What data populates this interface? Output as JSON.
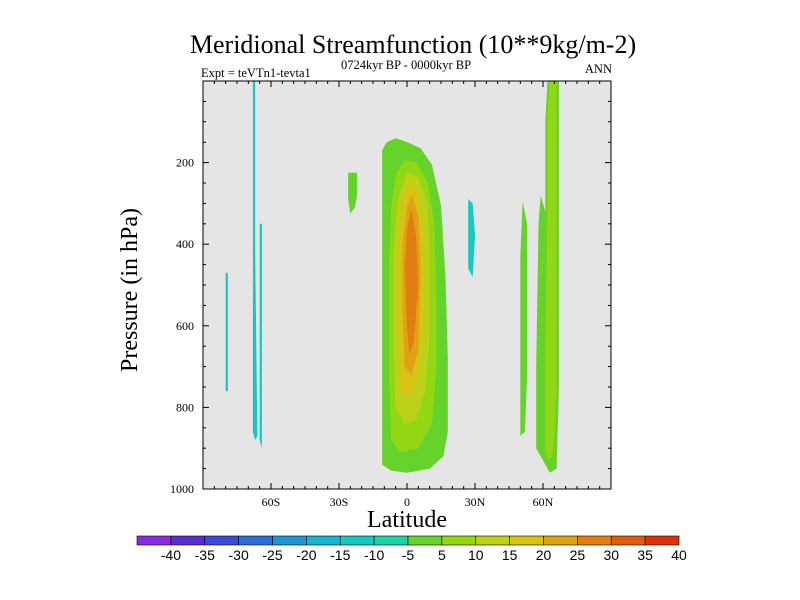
{
  "chart_data": {
    "type": "contour",
    "title": "Meridional Streamfunction (10**9kg/m-2)",
    "left_string": "Expt = teVTn1-tevta1",
    "center_string": "0724kyr BP - 0000kyr BP",
    "right_string": "ANN",
    "xlabel": "Latitude",
    "ylabel": "Pressure (in hPa)",
    "xlim": [
      -90,
      90
    ],
    "ylim": [
      1000,
      0
    ],
    "x_ticks": [
      {
        "value": -60,
        "label": "60S"
      },
      {
        "value": -30,
        "label": "30S"
      },
      {
        "value": 0,
        "label": "0"
      },
      {
        "value": 30,
        "label": "30N"
      },
      {
        "value": 60,
        "label": "60N"
      }
    ],
    "y_ticks": [
      {
        "value": 200,
        "label": "200"
      },
      {
        "value": 400,
        "label": "400"
      },
      {
        "value": 600,
        "label": "600"
      },
      {
        "value": 800,
        "label": "800"
      },
      {
        "value": 1000,
        "label": "1000"
      }
    ],
    "background_color": "#e5e5e5",
    "colorbar": {
      "labels": [
        "-40",
        "-35",
        "-30",
        "-25",
        "-20",
        "-15",
        "-10",
        "-5",
        "5",
        "10",
        "15",
        "20",
        "25",
        "30",
        "35",
        "40"
      ],
      "colors": [
        "#8a2be2",
        "#5b2fcf",
        "#3a4bd6",
        "#2d6fd9",
        "#1f95d6",
        "#18b5d2",
        "#16c8c0",
        "#1ed2a2",
        "#66d22c",
        "#93d614",
        "#bcd219",
        "#d8c214",
        "#e0a215",
        "#e27d12",
        "#e25a10",
        "#dd3308"
      ]
    },
    "regions": [
      {
        "name": "core-0-5",
        "color": "#66d22c",
        "points": [
          [
            -9,
            150
          ],
          [
            -5,
            140
          ],
          [
            1,
            152
          ],
          [
            6,
            165
          ],
          [
            11,
            205
          ],
          [
            15,
            305
          ],
          [
            17,
            480
          ],
          [
            18,
            680
          ],
          [
            18,
            860
          ],
          [
            16,
            920
          ],
          [
            10,
            950
          ],
          [
            0,
            960
          ],
          [
            -7,
            955
          ],
          [
            -11,
            940
          ],
          [
            -11,
            800
          ],
          [
            -11,
            600
          ],
          [
            -11,
            400
          ],
          [
            -11,
            250
          ],
          [
            -11,
            170
          ]
        ]
      },
      {
        "name": "core-5-10",
        "color": "#93d614",
        "points": [
          [
            -1,
            195
          ],
          [
            4,
            198
          ],
          [
            9,
            245
          ],
          [
            12,
            345
          ],
          [
            13,
            530
          ],
          [
            13,
            700
          ],
          [
            11,
            840
          ],
          [
            5,
            900
          ],
          [
            -3,
            910
          ],
          [
            -7,
            880
          ],
          [
            -8,
            700
          ],
          [
            -8,
            480
          ],
          [
            -7,
            310
          ],
          [
            -5,
            230
          ]
        ]
      },
      {
        "name": "core-10-15",
        "color": "#bcd219",
        "points": [
          [
            0,
            225
          ],
          [
            5,
            235
          ],
          [
            9,
            300
          ],
          [
            10,
            430
          ],
          [
            10,
            620
          ],
          [
            8,
            760
          ],
          [
            4,
            830
          ],
          [
            -1,
            840
          ],
          [
            -5,
            800
          ],
          [
            -6,
            620
          ],
          [
            -6,
            420
          ],
          [
            -4,
            290
          ]
        ]
      },
      {
        "name": "core-15-20",
        "color": "#d8c214",
        "points": [
          [
            1,
            248
          ],
          [
            5,
            275
          ],
          [
            7,
            380
          ],
          [
            7,
            600
          ],
          [
            5,
            730
          ],
          [
            1,
            780
          ],
          [
            -3,
            760
          ],
          [
            -4,
            600
          ],
          [
            -4,
            380
          ],
          [
            -2,
            285
          ]
        ]
      },
      {
        "name": "core-20-25",
        "color": "#e0a215",
        "points": [
          [
            2,
            280
          ],
          [
            5,
            330
          ],
          [
            6,
            470
          ],
          [
            5,
            660
          ],
          [
            2,
            720
          ],
          [
            -1,
            700
          ],
          [
            -2,
            560
          ],
          [
            -2,
            400
          ],
          [
            0,
            310
          ]
        ]
      },
      {
        "name": "core-25-30",
        "color": "#e27d12",
        "points": [
          [
            2,
            315
          ],
          [
            4,
            380
          ],
          [
            5,
            500
          ],
          [
            3,
            640
          ],
          [
            1,
            670
          ],
          [
            0,
            600
          ],
          [
            -1,
            460
          ],
          [
            0,
            360
          ]
        ]
      },
      {
        "name": "blob-left",
        "color": "#66d22c",
        "points": [
          [
            -26,
            225
          ],
          [
            -22,
            225
          ],
          [
            -22,
            280
          ],
          [
            -23,
            310
          ],
          [
            -25,
            325
          ],
          [
            -26,
            290
          ]
        ]
      },
      {
        "name": "nh-mid",
        "color": "#66d22c",
        "points": [
          [
            51,
            295
          ],
          [
            53,
            350
          ],
          [
            53,
            720
          ],
          [
            52,
            860
          ],
          [
            50,
            870
          ],
          [
            50,
            700
          ],
          [
            50,
            430
          ]
        ]
      },
      {
        "name": "nh-outer",
        "color": "#66d22c",
        "points": [
          [
            62,
            0
          ],
          [
            67,
            0
          ],
          [
            67,
            300
          ],
          [
            67,
            750
          ],
          [
            66,
            950
          ],
          [
            63,
            960
          ],
          [
            60,
            930
          ],
          [
            57,
            900
          ],
          [
            57,
            700
          ],
          [
            58,
            350
          ],
          [
            59,
            280
          ],
          [
            61,
            320
          ],
          [
            61,
            100
          ]
        ]
      },
      {
        "name": "nh-inner",
        "color": "#93d614",
        "points": [
          [
            63,
            0
          ],
          [
            66,
            0
          ],
          [
            66,
            300
          ],
          [
            66,
            760
          ],
          [
            65,
            870
          ],
          [
            64,
            920
          ],
          [
            62,
            930
          ],
          [
            61,
            900
          ],
          [
            61,
            650
          ],
          [
            62,
            300
          ],
          [
            62,
            80
          ]
        ]
      },
      {
        "name": "sh-neg-a",
        "color": "#16c8c0",
        "points": [
          [
            -80,
            470
          ],
          [
            -79,
            470
          ],
          [
            -79,
            760
          ],
          [
            -80,
            760
          ]
        ]
      },
      {
        "name": "sh-neg-b",
        "color": "#16c8c0",
        "points": [
          [
            -68,
            0
          ],
          [
            -67,
            0
          ],
          [
            -67,
            400
          ],
          [
            -66,
            870
          ],
          [
            -67,
            880
          ],
          [
            -68,
            860
          ],
          [
            -68,
            400
          ]
        ]
      },
      {
        "name": "sh-neg-c",
        "color": "#16c8c0",
        "points": [
          [
            -65,
            350
          ],
          [
            -64,
            350
          ],
          [
            -64,
            700
          ],
          [
            -64,
            900
          ],
          [
            -65,
            880
          ],
          [
            -65,
            700
          ]
        ]
      },
      {
        "name": "nh-neg",
        "color": "#16c8c0",
        "points": [
          [
            27,
            290
          ],
          [
            29,
            300
          ],
          [
            30,
            380
          ],
          [
            29,
            480
          ],
          [
            27,
            460
          ],
          [
            27,
            380
          ]
        ]
      }
    ]
  }
}
